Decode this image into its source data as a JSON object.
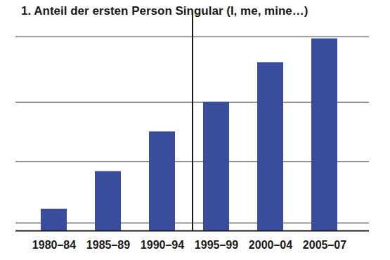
{
  "chart_data": {
    "type": "bar",
    "title": "1. Anteil der ersten Person Singular (I, me, mine…)",
    "categories": [
      "1980–84",
      "1985–89",
      "1990–94",
      "1995–99",
      "2000–04",
      "2005–07"
    ],
    "values": [
      11,
      30,
      50,
      65,
      85,
      97
    ],
    "color": "#3a4c9c",
    "ylim": [
      0,
      110
    ],
    "yticks": [
      4,
      35,
      65,
      98
    ],
    "grid": true,
    "tick_labels": "x"
  }
}
